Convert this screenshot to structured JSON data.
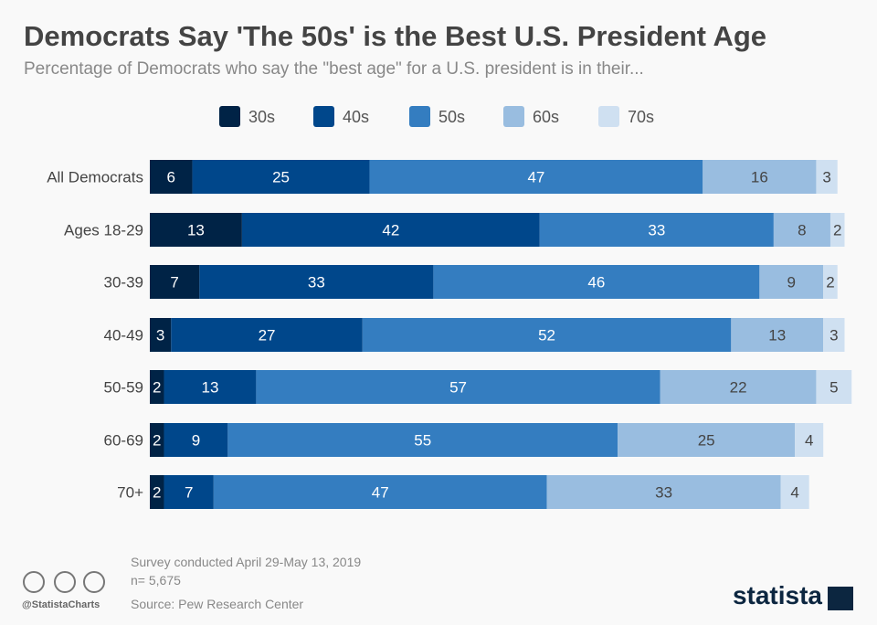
{
  "title": "Democrats Say 'The 50s' is the Best U.S. President Age",
  "subtitle": "Percentage of Democrats who say the \"best age\" for a U.S. president is in their...",
  "chart_data": {
    "type": "bar",
    "orientation": "horizontal",
    "stacked": true,
    "categories": [
      "All Democrats",
      "Ages 18-29",
      "30-39",
      "40-49",
      "50-59",
      "60-69",
      "70+"
    ],
    "series": [
      {
        "name": "30s",
        "color": "#002346",
        "values": [
          6,
          13,
          7,
          3,
          2,
          2,
          2
        ]
      },
      {
        "name": "40s",
        "color": "#00478b",
        "values": [
          25,
          42,
          33,
          27,
          13,
          9,
          7
        ]
      },
      {
        "name": "50s",
        "color": "#347dc0",
        "values": [
          47,
          33,
          46,
          52,
          57,
          55,
          47
        ]
      },
      {
        "name": "60s",
        "color": "#99bde0",
        "values": [
          16,
          8,
          9,
          13,
          22,
          25,
          33
        ]
      },
      {
        "name": "70s",
        "color": "#cfe0f1",
        "values": [
          3,
          2,
          2,
          3,
          5,
          4,
          4
        ]
      }
    ],
    "legend": "top",
    "grid": false
  },
  "footer": {
    "survey": "Survey conducted April 29-May 13, 2019",
    "n": "n= 5,675",
    "source": "Source: Pew Research Center",
    "handle": "@StatistaCharts",
    "logo": "statista"
  }
}
